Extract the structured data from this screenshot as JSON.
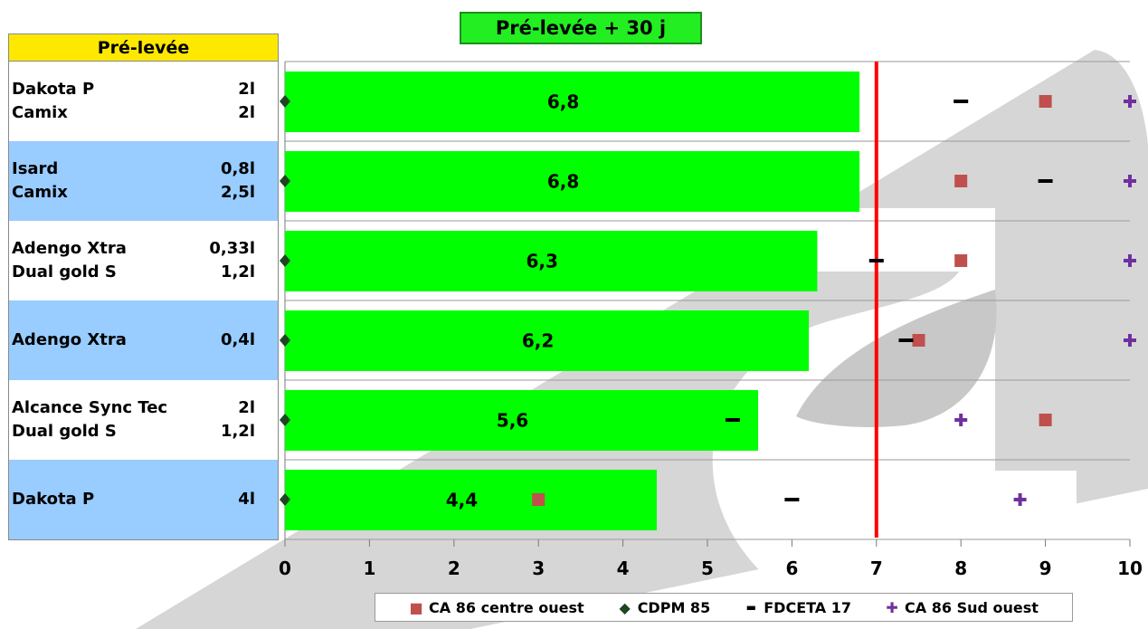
{
  "title": "Pré-levée + 30 j",
  "table": {
    "header": "Pré-levée",
    "rows": [
      {
        "lines": [
          {
            "product": "Dakota P",
            "dose": "2l"
          },
          {
            "product": "Camix",
            "dose": "2l"
          }
        ],
        "highlight": false
      },
      {
        "lines": [
          {
            "product": "Isard",
            "dose": "0,8l"
          },
          {
            "product": "Camix",
            "dose": "2,5l"
          }
        ],
        "highlight": true
      },
      {
        "lines": [
          {
            "product": "Adengo Xtra",
            "dose": "0,33l"
          },
          {
            "product": "Dual gold S",
            "dose": "1,2l"
          }
        ],
        "highlight": false
      },
      {
        "lines": [
          {
            "product": "Adengo Xtra",
            "dose": "0,4l"
          }
        ],
        "highlight": true
      },
      {
        "lines": [
          {
            "product": "Alcance Sync Tec",
            "dose": "2l"
          },
          {
            "product": "Dual gold S",
            "dose": "1,2l"
          }
        ],
        "highlight": false
      },
      {
        "lines": [
          {
            "product": "Dakota P",
            "dose": "4l"
          }
        ],
        "highlight": true
      }
    ]
  },
  "chart_data": {
    "type": "bar",
    "orientation": "horizontal",
    "xlim": [
      0,
      10
    ],
    "xticks": [
      "0",
      "1",
      "2",
      "3",
      "4",
      "5",
      "6",
      "7",
      "8",
      "9",
      "10"
    ],
    "bar_values": [
      6.8,
      6.8,
      6.3,
      6.2,
      5.6,
      4.4
    ],
    "bar_labels": [
      "6,8",
      "6,8",
      "6,3",
      "6,2",
      "5,6",
      "4,4"
    ],
    "bar_color": "#00ff00",
    "reference_line": {
      "x": 7,
      "color": "#ff0000"
    },
    "grid": "horizontal row separators",
    "legend_position": "bottom",
    "series": [
      {
        "name": "CA 86 centre ouest",
        "marker": "square",
        "color": "#c0504d",
        "values": [
          9,
          8,
          8,
          7.5,
          9,
          3
        ]
      },
      {
        "name": "CDPM 85",
        "marker": "diamond",
        "color": "#1e4620",
        "values": [
          0,
          0,
          0,
          0,
          0,
          0
        ]
      },
      {
        "name": "FDCETA 17",
        "marker": "dash",
        "color": "#000000",
        "values": [
          8,
          9,
          7,
          7.35,
          5.3,
          6
        ]
      },
      {
        "name": "CA 86 Sud ouest",
        "marker": "plus",
        "color": "#7030a0",
        "values": [
          10,
          10,
          10,
          10,
          8,
          8.7
        ]
      }
    ]
  }
}
